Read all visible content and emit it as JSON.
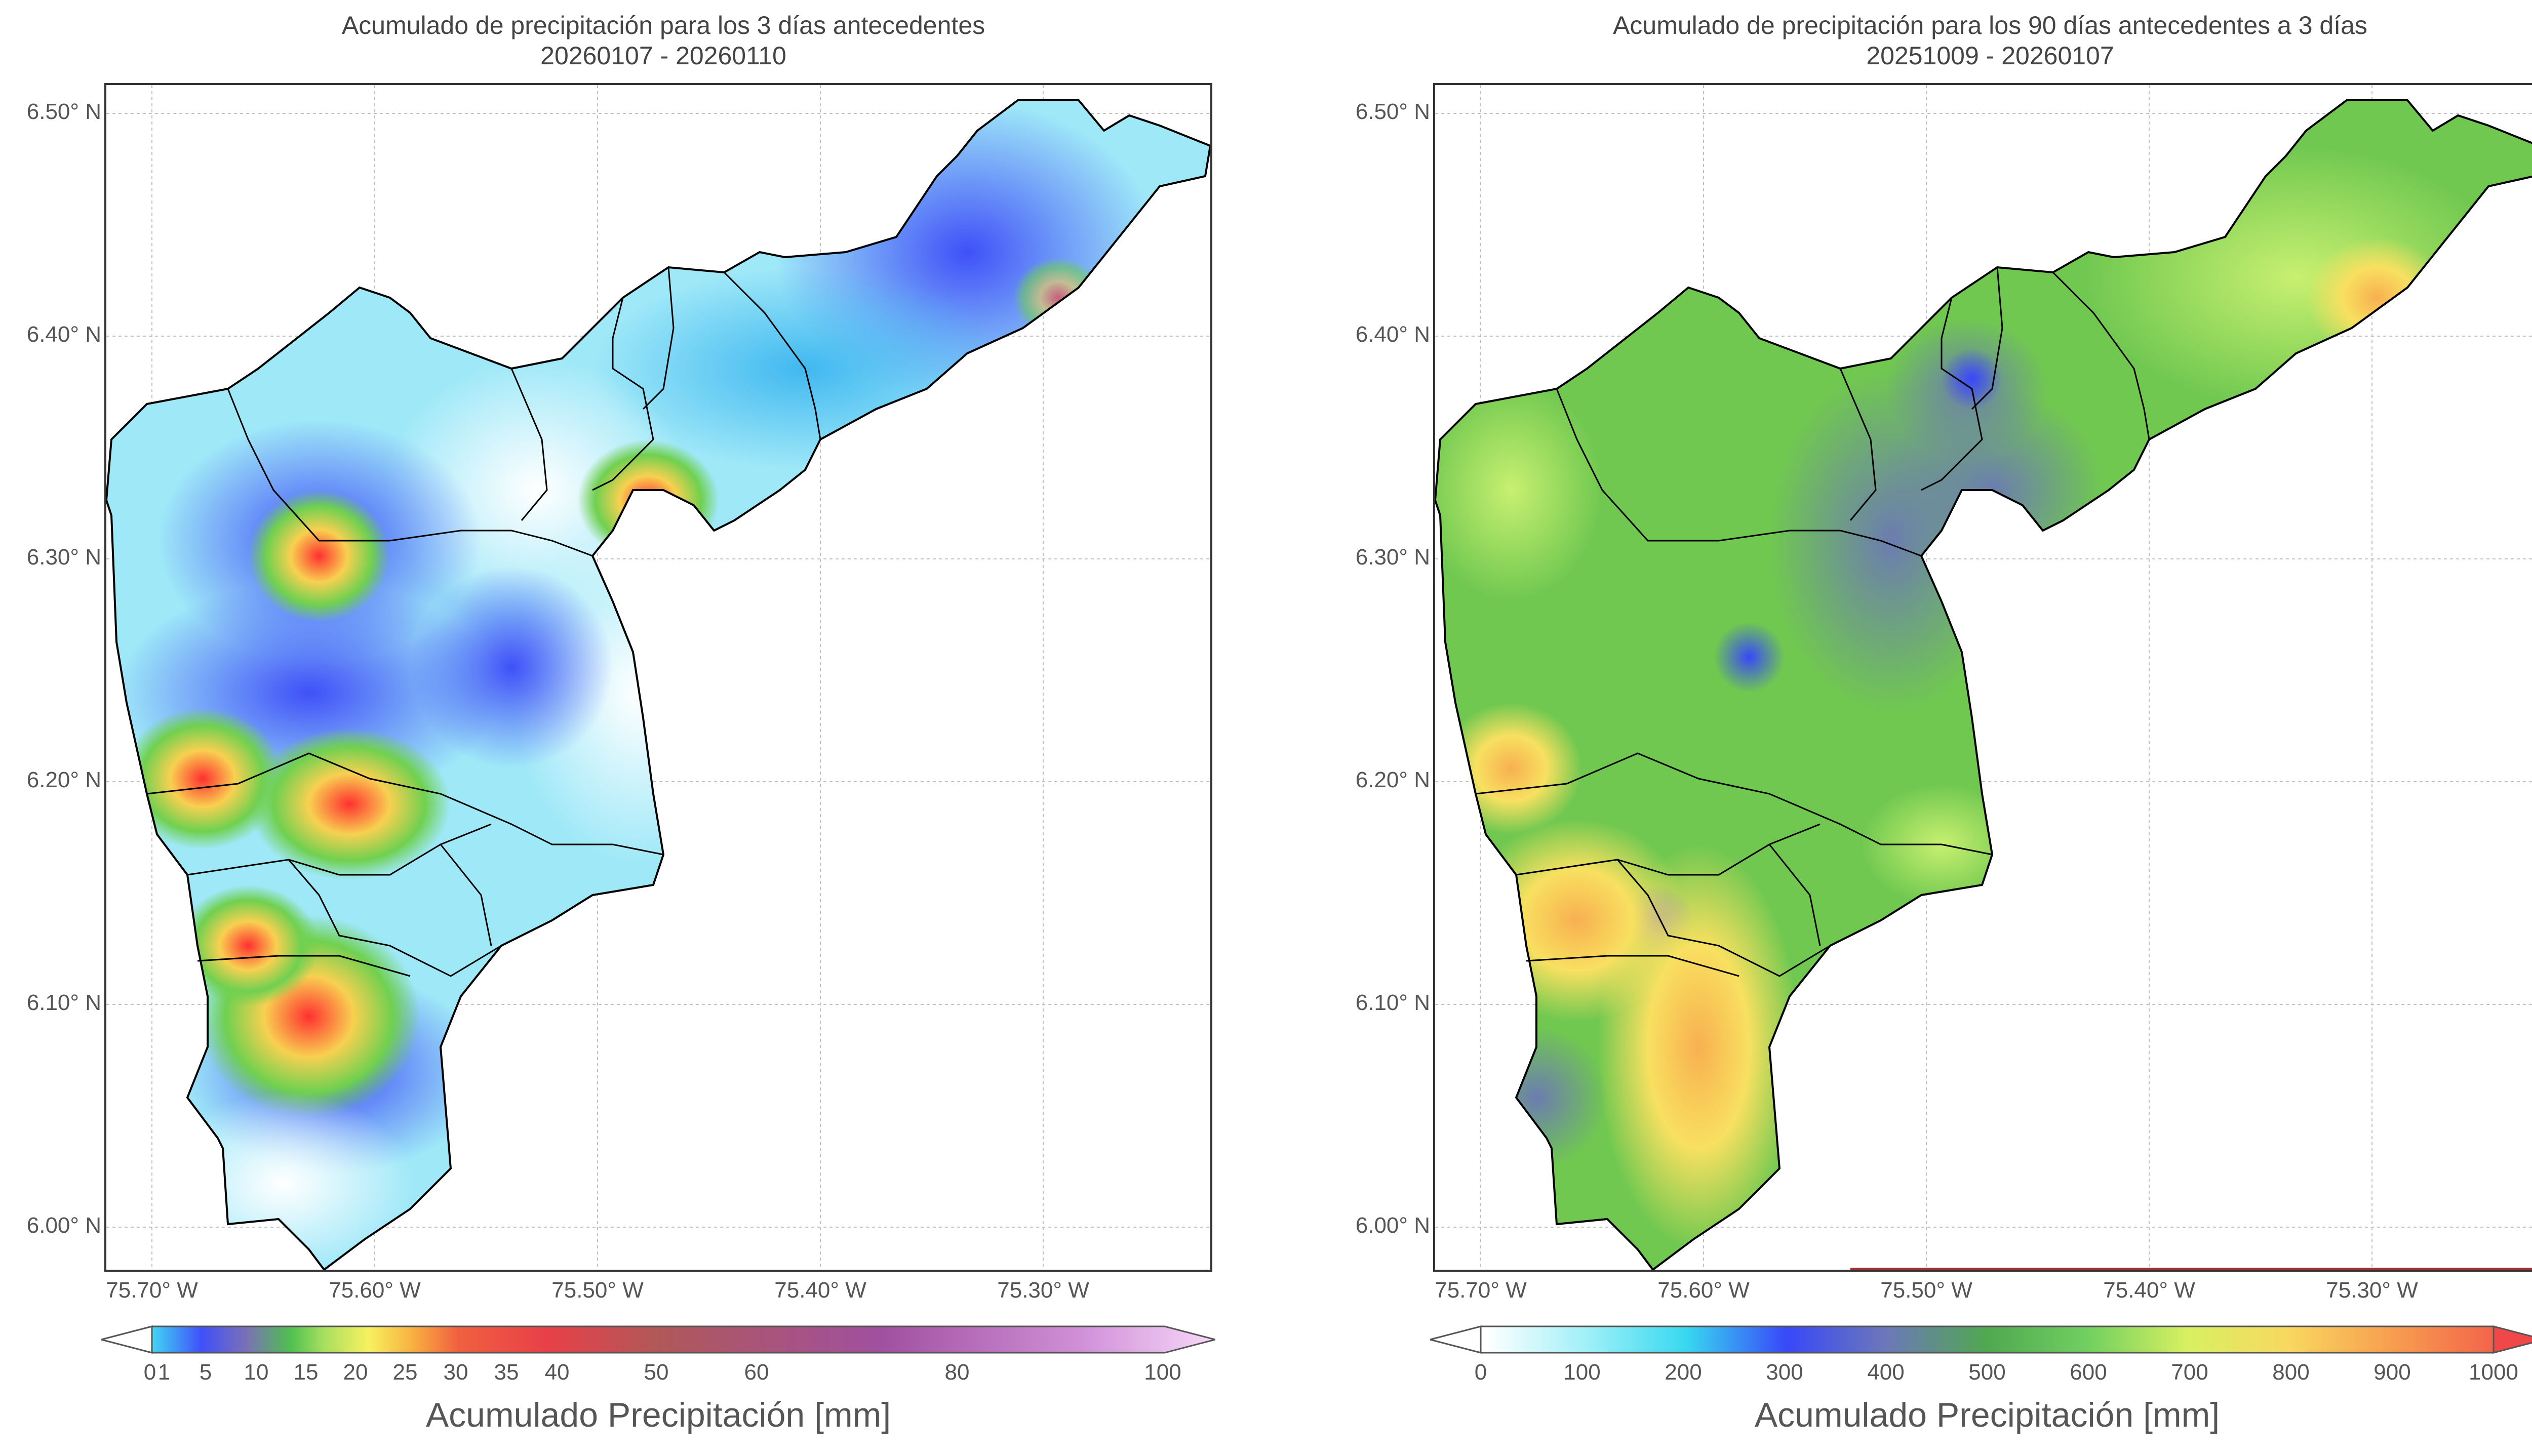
{
  "panels": [
    {
      "title_line1": "Acumulado de precipitación para los 3 días antecedentes",
      "title_line2": "20260107 - 20260110",
      "y_ticks": [
        "6.50° N",
        "6.40° N",
        "6.30° N",
        "6.20° N",
        "6.10° N",
        "6.00° N"
      ],
      "x_ticks": [
        "75.70° W",
        "75.60° W",
        "75.50° W",
        "75.40° W",
        "75.30° W"
      ],
      "colorbar_labels": [
        "0",
        "1",
        "5",
        "10",
        "15",
        "20",
        "25",
        "30",
        "35",
        "40",
        "50",
        "60",
        "80",
        "100"
      ],
      "colorbar_title": "Acumulado Precipitación [mm]",
      "colorbar_colors": [
        "#ffffff",
        "#41e6f5",
        "#4050f8",
        "#7a70b8",
        "#4fc04f",
        "#a8e060",
        "#f8f060",
        "#f8b040",
        "#f06040",
        "#e84048",
        "#b05858",
        "#a050a0",
        "#d090d8",
        "#f8d8f8"
      ]
    },
    {
      "title_line1": "Acumulado de precipitación para los 90 días antecedentes a 3 días",
      "title_line2": "20251009 - 20260107",
      "y_ticks": [
        "6.50° N",
        "6.40° N",
        "6.30° N",
        "6.20° N",
        "6.10° N",
        "6.00° N"
      ],
      "x_ticks": [
        "75.70° W",
        "75.60° W",
        "75.50° W",
        "75.40° W",
        "75.30° W"
      ],
      "colorbar_labels": [
        "0",
        "100",
        "200",
        "300",
        "400",
        "500",
        "600",
        "700",
        "800",
        "900",
        "1000"
      ],
      "colorbar_title": "Acumulado Precipitación [mm]",
      "colorbar_colors": [
        "#ffffff",
        "#a0f0f8",
        "#38d8f0",
        "#3848f8",
        "#6c78b8",
        "#50a850",
        "#70d060",
        "#d8f060",
        "#f8d860",
        "#f8a050",
        "#f04848"
      ]
    }
  ]
}
